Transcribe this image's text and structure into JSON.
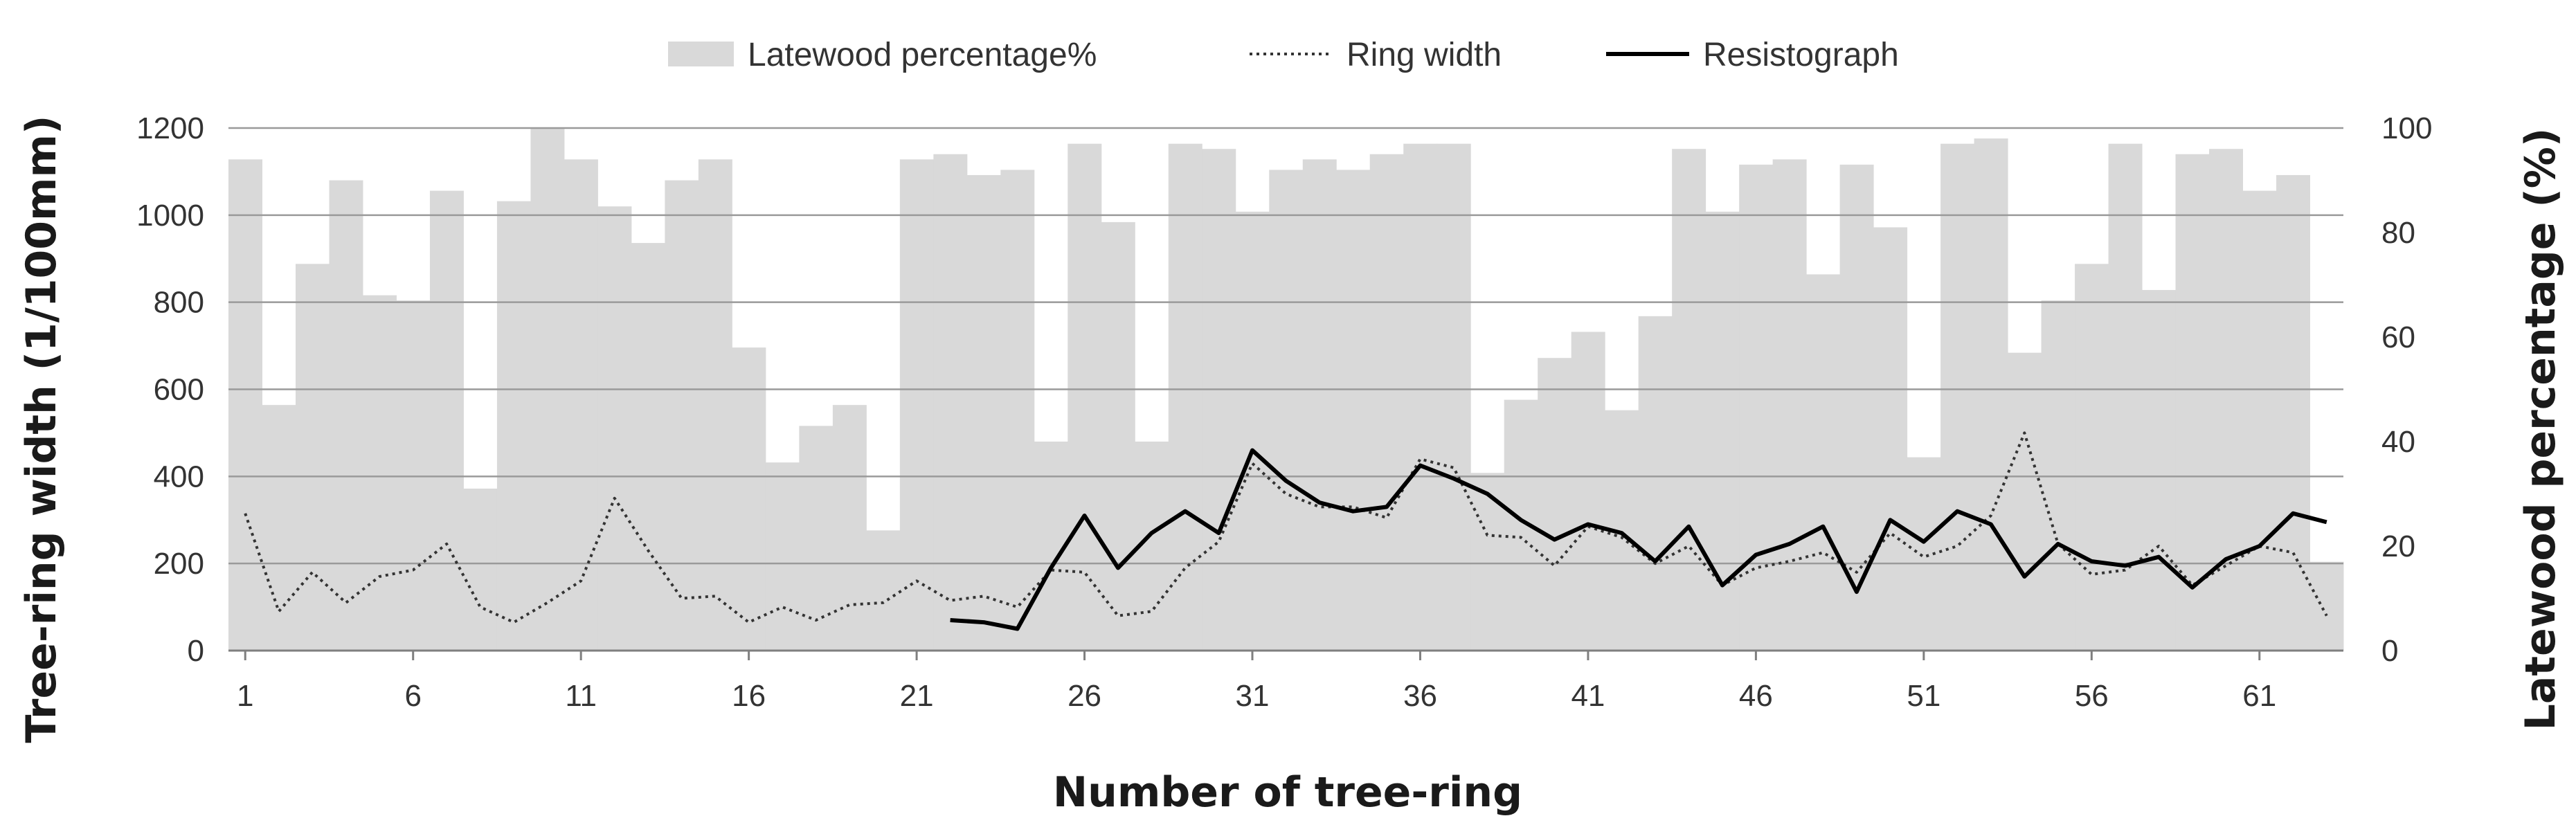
{
  "chart_data": {
    "type": "bar",
    "x": [
      1,
      2,
      3,
      4,
      5,
      6,
      7,
      8,
      9,
      10,
      11,
      12,
      13,
      14,
      15,
      16,
      17,
      18,
      19,
      20,
      21,
      22,
      23,
      24,
      25,
      26,
      27,
      28,
      29,
      30,
      31,
      32,
      33,
      34,
      35,
      36,
      37,
      38,
      39,
      40,
      41,
      42,
      43,
      44,
      45,
      46,
      47,
      48,
      49,
      50,
      51,
      52,
      53,
      54,
      55,
      56,
      57,
      58,
      59,
      60,
      61,
      62,
      63
    ],
    "x_ticks": [
      "1",
      "6",
      "11",
      "16",
      "21",
      "26",
      "31",
      "36",
      "41",
      "46",
      "51",
      "56",
      "61"
    ],
    "xlabel": "Number of tree-ring",
    "ylabel": "Tree-ring width  (1/100mm)",
    "ylabel_right": "Latewood percentage (%)",
    "ylim": [
      0,
      1200
    ],
    "ylim_right": [
      0,
      100
    ],
    "y_ticks": [
      "0",
      "200",
      "400",
      "600",
      "800",
      "1000",
      "1200"
    ],
    "y_ticks_right": [
      "0",
      "20",
      "40",
      "60",
      "80",
      "100"
    ],
    "grid": true,
    "legend_position": "top-center",
    "series": [
      {
        "name": "Latewood percentage%",
        "type": "bar",
        "axis": "right",
        "color": "#d9d9d9",
        "values": [
          94,
          47,
          74,
          90,
          68,
          67,
          88,
          31,
          86,
          100,
          94,
          85,
          78,
          90,
          94,
          58,
          36,
          43,
          47,
          23,
          94,
          95,
          91,
          92,
          40,
          97,
          82,
          40,
          97,
          96,
          84,
          92,
          94,
          92,
          95,
          97,
          97,
          34,
          48,
          56,
          61,
          46,
          64,
          96,
          84,
          93,
          94,
          72,
          93,
          81,
          37,
          97,
          98,
          57,
          67,
          74,
          97,
          69,
          95,
          96,
          88,
          91,
          17
        ]
      },
      {
        "name": "Ring width",
        "type": "line",
        "axis": "left",
        "style": "dotted",
        "color": "#333333",
        "values": [
          315,
          90,
          180,
          110,
          170,
          185,
          245,
          100,
          65,
          110,
          160,
          350,
          230,
          120,
          125,
          65,
          100,
          70,
          105,
          110,
          160,
          115,
          125,
          100,
          185,
          180,
          80,
          90,
          190,
          250,
          430,
          360,
          330,
          330,
          305,
          440,
          420,
          265,
          260,
          195,
          285,
          260,
          200,
          240,
          150,
          190,
          205,
          225,
          180,
          270,
          215,
          240,
          310,
          500,
          245,
          175,
          185,
          240,
          150,
          195,
          240,
          225,
          80
        ]
      },
      {
        "name": "Resistograph",
        "type": "line",
        "axis": "left",
        "style": "solid",
        "color": "#000000",
        "values": [
          null,
          null,
          null,
          null,
          null,
          null,
          null,
          null,
          null,
          null,
          null,
          null,
          null,
          null,
          null,
          null,
          null,
          null,
          null,
          null,
          null,
          70,
          65,
          50,
          190,
          310,
          190,
          270,
          320,
          270,
          460,
          390,
          340,
          320,
          330,
          425,
          395,
          360,
          300,
          255,
          290,
          270,
          205,
          285,
          150,
          220,
          245,
          285,
          135,
          300,
          250,
          320,
          290,
          170,
          245,
          205,
          195,
          215,
          145,
          210,
          240,
          315,
          295
        ]
      }
    ]
  }
}
